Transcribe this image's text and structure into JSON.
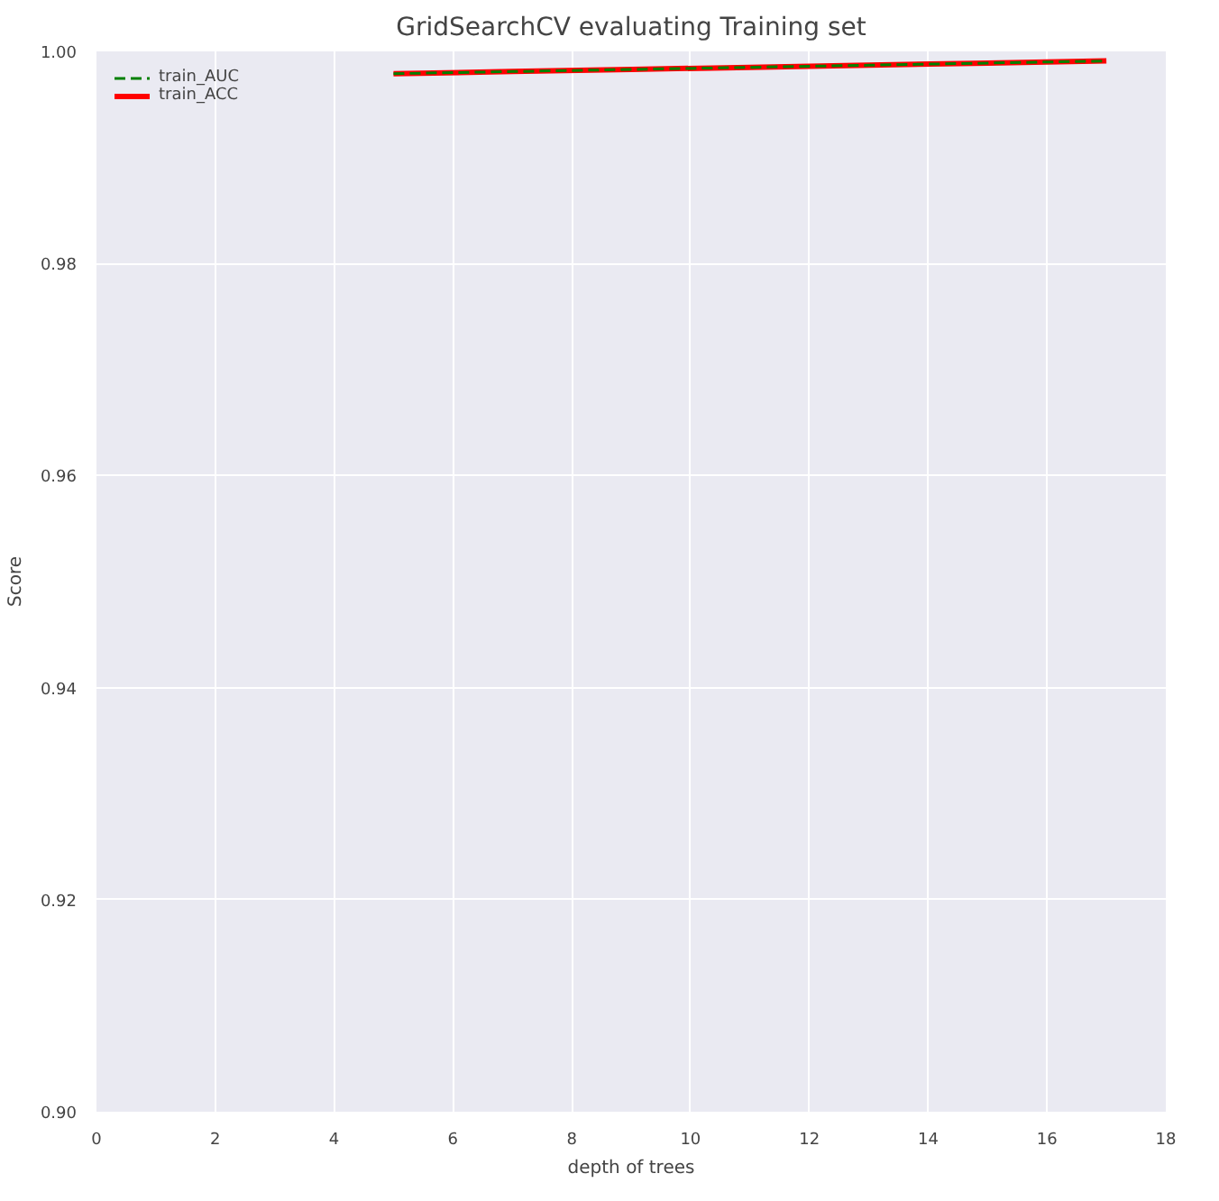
{
  "chart_data": {
    "type": "line",
    "title": "GridSearchCV evaluating Training set",
    "xlabel": "depth of trees",
    "ylabel": "Score",
    "xlim": [
      0,
      18
    ],
    "xticks": [
      0,
      2,
      4,
      6,
      8,
      10,
      12,
      14,
      16,
      18
    ],
    "ylim": [
      0.9,
      1.0
    ],
    "yticks": [
      {
        "value": 0.9,
        "label": "0.90"
      },
      {
        "value": 0.92,
        "label": "0.92"
      },
      {
        "value": 0.94,
        "label": "0.94"
      },
      {
        "value": 0.96,
        "label": "0.96"
      },
      {
        "value": 0.98,
        "label": "0.98"
      },
      {
        "value": 1.0,
        "label": "1.00"
      }
    ],
    "x": [
      5,
      7,
      9,
      11,
      13,
      15,
      17
    ],
    "series": [
      {
        "name": "train_AUC",
        "color": "#008000",
        "line_style": "dashed",
        "values": [
          0.9979,
          0.9981,
          0.9983,
          0.9985,
          0.9987,
          0.9989,
          0.9991
        ]
      },
      {
        "name": "train_ACC",
        "color": "#ff0000",
        "line_style": "solid",
        "values": [
          0.9979,
          0.9981,
          0.9983,
          0.9985,
          0.9987,
          0.9989,
          0.9991
        ]
      }
    ],
    "grid": true,
    "legend": "top left"
  }
}
